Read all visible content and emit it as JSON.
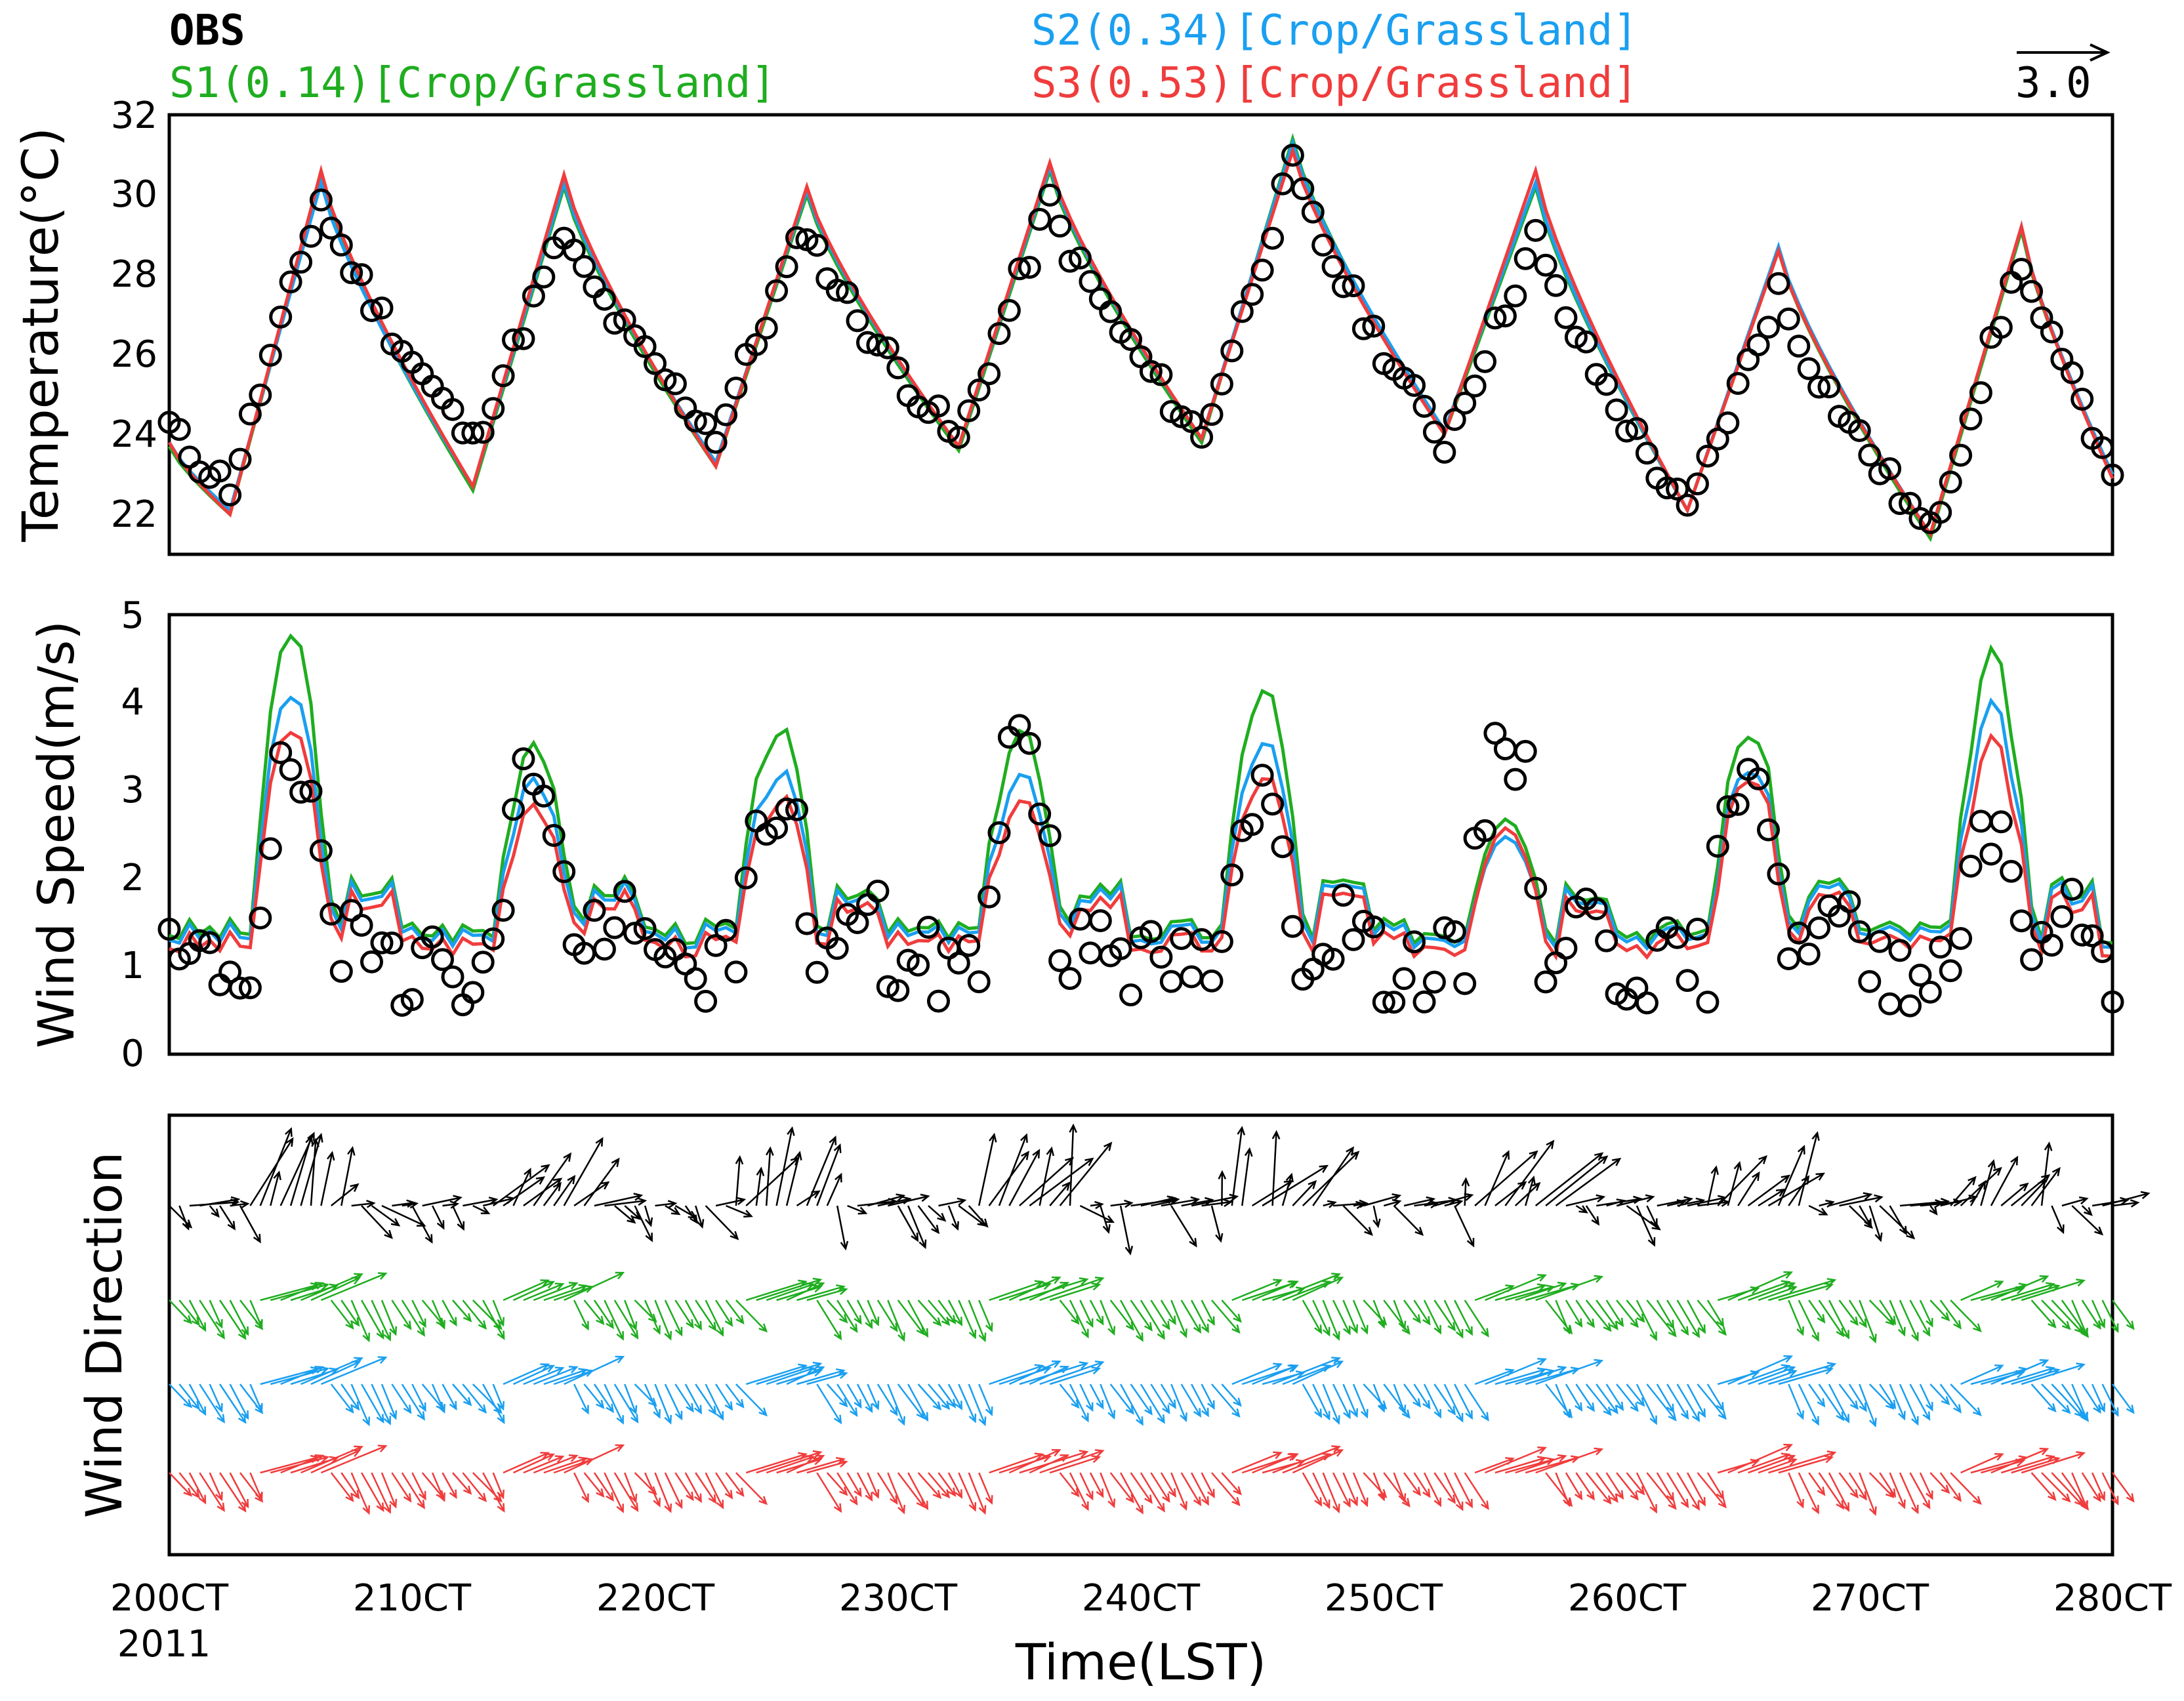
{
  "chart_data": [
    {
      "type": "line",
      "panel": "temperature",
      "ylabel": "Temperature(°C)",
      "ylim": [
        21,
        32
      ],
      "yticks": [
        "22",
        "24",
        "26",
        "28",
        "30",
        "32"
      ],
      "markers": "OBS as open circles, simulations as lines",
      "series_peaks_troughs": {
        "OBS": [
          24.2,
          22.7,
          29.9,
          23.8,
          29.0,
          24.0,
          29.2,
          23.8,
          29.8,
          23.9,
          30.7,
          23.8,
          28.9,
          22.0,
          27.6,
          21.5,
          28.4,
          23.3
        ],
        "S1": [
          23.7,
          22.0,
          30.4,
          22.6,
          30.2,
          23.2,
          30.0,
          23.6,
          30.6,
          23.8,
          31.4,
          24.0,
          30.2,
          22.1,
          28.6,
          21.4,
          29.1,
          23.0
        ],
        "S2": [
          23.8,
          22.1,
          30.3,
          22.7,
          30.3,
          23.3,
          30.1,
          23.7,
          30.7,
          23.9,
          31.3,
          24.1,
          30.3,
          22.1,
          28.7,
          21.5,
          29.2,
          23.0
        ],
        "S3": [
          23.8,
          22.0,
          30.6,
          22.7,
          30.5,
          23.2,
          30.2,
          23.7,
          30.8,
          23.9,
          31.1,
          24.0,
          30.6,
          22.1,
          28.6,
          21.5,
          29.2,
          22.9
        ]
      }
    },
    {
      "type": "line",
      "panel": "wind_speed",
      "ylabel": "Wind Speed(m/s)",
      "ylim": [
        0,
        5
      ],
      "yticks": [
        "0",
        "1",
        "2",
        "3",
        "4",
        "5"
      ],
      "series_peaks": {
        "OBS": [
          3.2,
          3.3,
          2.9,
          3.7,
          2.9,
          3.7,
          3.5,
          2.7
        ],
        "S1": [
          4.8,
          3.6,
          3.7,
          3.7,
          4.2,
          2.8,
          3.7,
          4.5
        ],
        "S2": [
          4.1,
          3.2,
          3.2,
          3.2,
          3.6,
          2.6,
          3.3,
          3.9
        ],
        "S3": [
          3.7,
          2.9,
          2.9,
          2.9,
          3.2,
          2.7,
          3.2,
          3.5
        ]
      }
    },
    {
      "type": "vector",
      "panel": "wind_direction",
      "ylabel": "Wind Direction",
      "reference_vector": "3.0",
      "rows": [
        "OBS",
        "S1",
        "S2",
        "S3"
      ]
    }
  ],
  "legend": {
    "obs": "OBS",
    "s1": "S1(0.14)[Crop/Grassland]",
    "s2": "S2(0.34)[Crop/Grassland]",
    "s3": "S3(0.53)[Crop/Grassland]",
    "ref_vector": "3.0"
  },
  "x_axis": {
    "label": "Time(LST)",
    "ticks": [
      "200CT",
      "210CT",
      "220CT",
      "230CT",
      "240CT",
      "250CT",
      "260CT",
      "270CT",
      "280CT"
    ],
    "year": "2011"
  },
  "colors": {
    "obs": "#000000",
    "s1": "#1fad1f",
    "s2": "#1a9ff0",
    "s3": "#f03c3c"
  }
}
